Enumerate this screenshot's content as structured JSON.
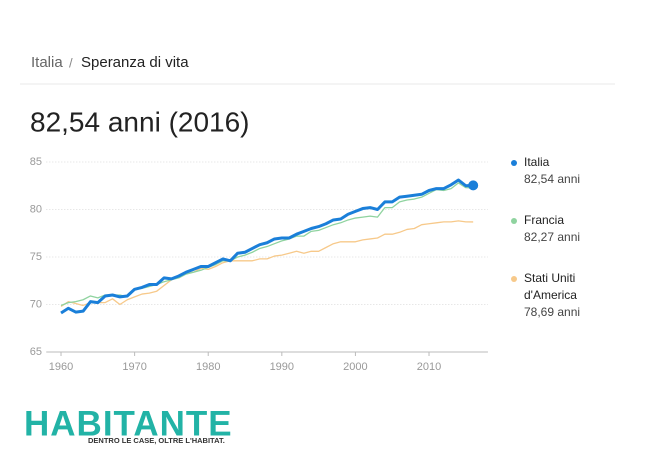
{
  "breadcrumb": {
    "country": "Italia",
    "separator": "/",
    "topic": "Speranza di vita"
  },
  "headline": "82,54 anni (2016)",
  "chart_data": {
    "type": "line",
    "x": [
      1960,
      1961,
      1962,
      1963,
      1964,
      1965,
      1966,
      1967,
      1968,
      1969,
      1970,
      1971,
      1972,
      1973,
      1974,
      1975,
      1976,
      1977,
      1978,
      1979,
      1980,
      1981,
      1982,
      1983,
      1984,
      1985,
      1986,
      1987,
      1988,
      1989,
      1990,
      1991,
      1992,
      1993,
      1994,
      1995,
      1996,
      1997,
      1998,
      1999,
      2000,
      2001,
      2002,
      2003,
      2004,
      2005,
      2006,
      2007,
      2008,
      2009,
      2010,
      2011,
      2012,
      2013,
      2014,
      2015,
      2016
    ],
    "series": [
      {
        "name": "Italia",
        "label": "82,54 anni",
        "color": "#1a7fd9",
        "width": 3,
        "values": [
          69.1,
          69.6,
          69.2,
          69.3,
          70.3,
          70.2,
          70.9,
          71.0,
          70.8,
          70.9,
          71.6,
          71.8,
          72.1,
          72.1,
          72.8,
          72.7,
          73.0,
          73.4,
          73.7,
          74.0,
          74.0,
          74.4,
          74.8,
          74.6,
          75.4,
          75.5,
          75.9,
          76.3,
          76.5,
          76.9,
          77.0,
          77.0,
          77.4,
          77.7,
          78.0,
          78.2,
          78.5,
          78.9,
          79.0,
          79.5,
          79.8,
          80.1,
          80.2,
          80.0,
          80.8,
          80.8,
          81.3,
          81.4,
          81.5,
          81.6,
          82.0,
          82.2,
          82.2,
          82.6,
          83.1,
          82.5,
          82.54
        ]
      },
      {
        "name": "Francia",
        "label": "82,27 anni",
        "color": "#8fd39f",
        "width": 1.3,
        "values": [
          69.9,
          70.2,
          70.3,
          70.5,
          70.9,
          70.7,
          71.0,
          71.0,
          71.0,
          70.8,
          71.6,
          71.7,
          71.9,
          72.1,
          72.4,
          72.6,
          72.8,
          73.2,
          73.4,
          73.6,
          73.9,
          74.2,
          74.6,
          74.6,
          75.0,
          75.2,
          75.5,
          75.9,
          76.1,
          76.4,
          76.7,
          76.9,
          77.2,
          77.2,
          77.7,
          77.8,
          78.1,
          78.4,
          78.6,
          78.9,
          79.1,
          79.2,
          79.3,
          79.2,
          80.2,
          80.2,
          80.8,
          81.0,
          81.1,
          81.3,
          81.7,
          82.1,
          82.0,
          82.2,
          82.8,
          82.3,
          82.27
        ]
      },
      {
        "name": "Stati Uniti d'America",
        "label": "78,69 anni",
        "color": "#f7c98a",
        "width": 1.3,
        "values": [
          69.8,
          70.3,
          70.1,
          69.9,
          70.2,
          70.2,
          70.2,
          70.6,
          70.0,
          70.5,
          70.8,
          71.1,
          71.2,
          71.4,
          72.0,
          72.6,
          72.9,
          73.3,
          73.4,
          73.8,
          73.7,
          74.0,
          74.4,
          74.6,
          74.6,
          74.6,
          74.6,
          74.8,
          74.8,
          75.1,
          75.2,
          75.4,
          75.6,
          75.4,
          75.6,
          75.6,
          76.0,
          76.4,
          76.6,
          76.6,
          76.6,
          76.8,
          76.9,
          77.0,
          77.4,
          77.4,
          77.6,
          77.9,
          78.0,
          78.4,
          78.5,
          78.6,
          78.7,
          78.7,
          78.8,
          78.7,
          78.69
        ]
      }
    ],
    "xlim": [
      1958,
      2018
    ],
    "xticks": [
      1960,
      1970,
      1980,
      1990,
      2000,
      2010
    ],
    "ylim": [
      65,
      85
    ],
    "yticks": [
      65,
      70,
      75,
      80,
      85
    ],
    "grid": true
  },
  "logo": {
    "brand": "HABITANTE",
    "tagline": "DENTRO LE CASE, OLTRE L'HABITAT."
  }
}
